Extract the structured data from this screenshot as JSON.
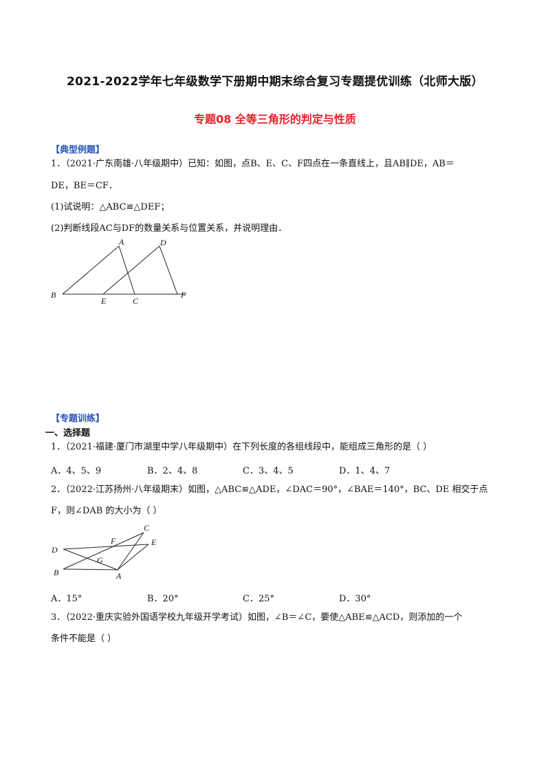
{
  "header": {
    "title": "2021-2022学年七年级数学下册期中期末综合复习专题提优训练（北师大版）",
    "subtitle": "专题08  全等三角形的判定与性质"
  },
  "example": {
    "section_label": "【典型例题】",
    "q1": {
      "line1": "1．（2021·广东南雄·八年级期中）已知：如图，点B、E、C、F四点在一条直线上，且AB∥DE，AB＝",
      "line2": "DE，BE＝CF．",
      "part1": "(1)试说明：△ABC≌△DEF；",
      "part2": "(2)判断线段AC与DF的数量关系与位置关系，并说明理由．",
      "figure_labels": {
        "A": "A",
        "B": "B",
        "C": "C",
        "D": "D",
        "E": "E",
        "F": "F"
      }
    }
  },
  "training": {
    "section_label": "【专题训练】",
    "heading": "一、选择题",
    "q1": {
      "text": "1．（2021·福建·厦门市湖里中学八年级期中）在下列长度的各组线段中，能组成三角形的是（      ）",
      "options": [
        "A．4、5、9",
        "B．2、4、8",
        "C．3、4、5",
        "D．1、4、7"
      ]
    },
    "q2": {
      "line1": "2．（2022·江苏扬州·八年级期末）如图，△ABC≌△ADE，∠DAC＝90°，∠BAE＝140°，BC、DE 相交于点",
      "line2": "F，则∠DAB 的大小为（      ）",
      "options": [
        "A．15°",
        "B．20°",
        "C．25°",
        "D．30°"
      ],
      "figure_labels": {
        "A": "A",
        "B": "B",
        "C": "C",
        "D": "D",
        "E": "E",
        "F": "F",
        "G": "G"
      }
    },
    "q3": {
      "line1": "3．（2022·重庆实验外国语学校九年级开学考试）如图，∠B＝∠C，要使△ABE≌△ACD，则添加的一个",
      "line2": "条件不能是（      ）"
    }
  }
}
